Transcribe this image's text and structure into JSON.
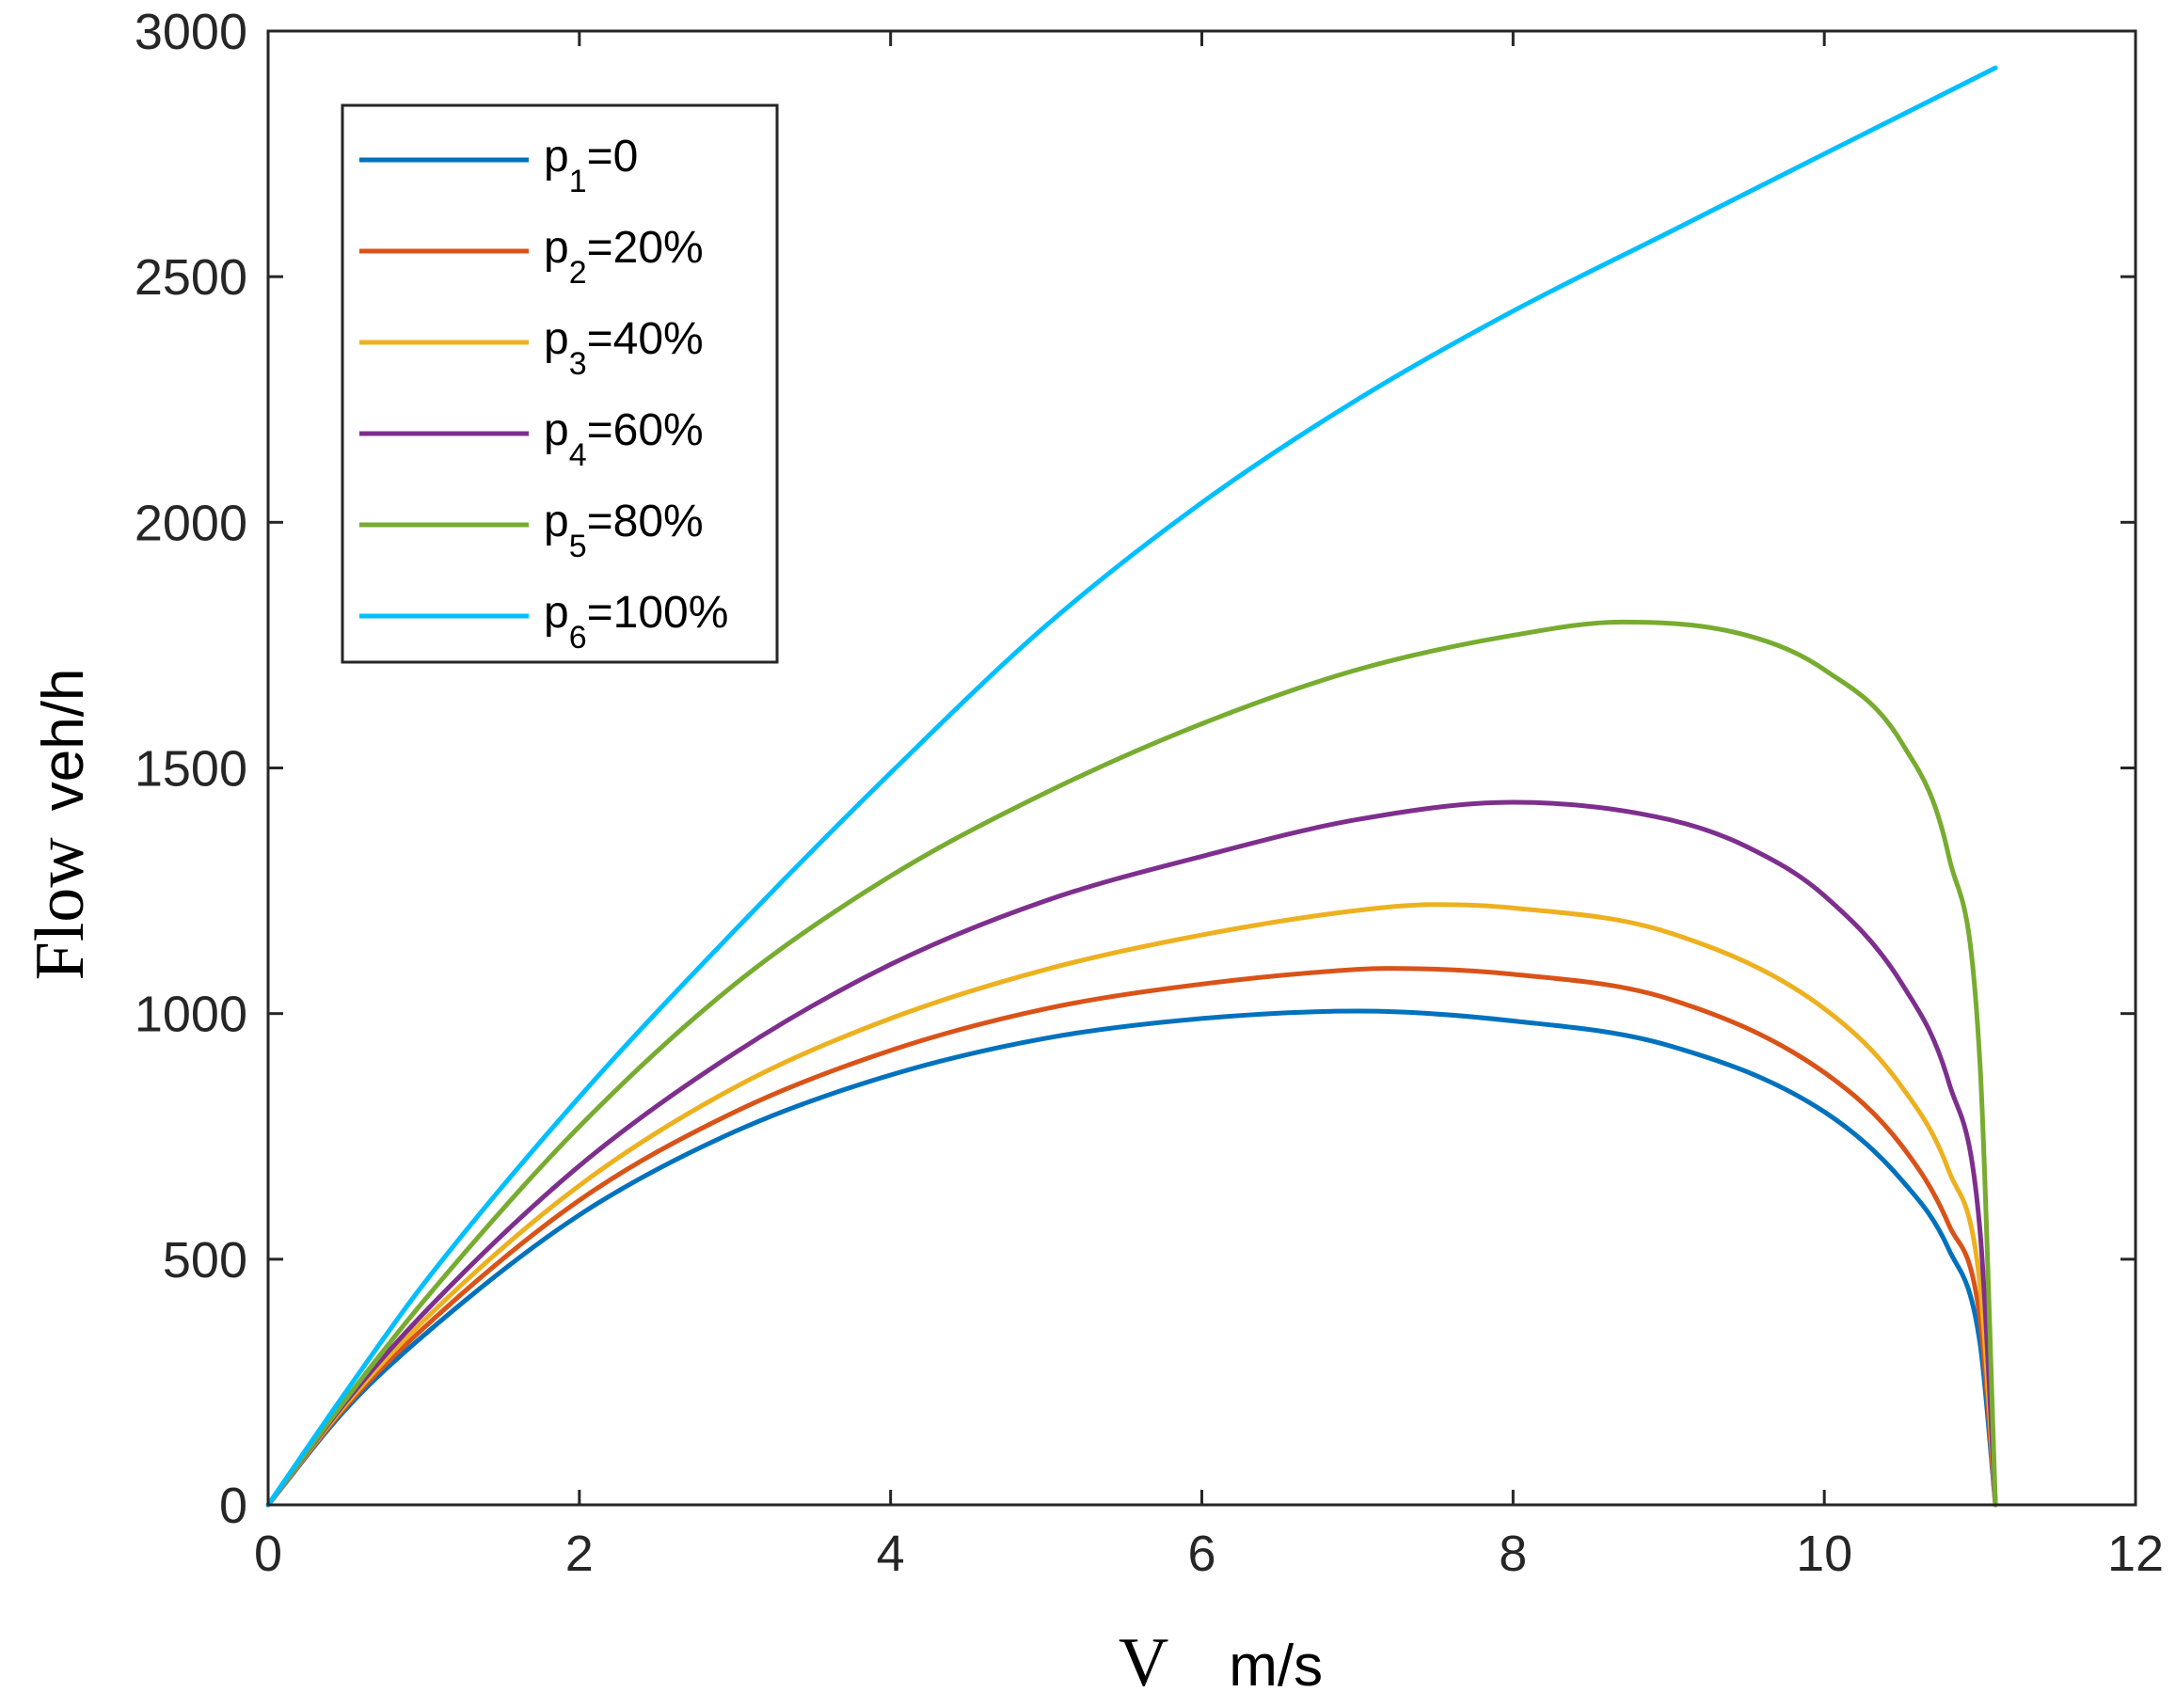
{
  "chart_data": {
    "type": "line",
    "title": "",
    "xlabel": {
      "var": "V",
      "unit": "m/s"
    },
    "ylabel": {
      "var": "Flow",
      "unit": "veh/h"
    },
    "xlim": [
      0,
      12
    ],
    "ylim": [
      0,
      3000
    ],
    "xticks": [
      0,
      2,
      4,
      6,
      8,
      10,
      12
    ],
    "yticks": [
      0,
      500,
      1000,
      1500,
      2000,
      2500,
      3000
    ],
    "grid": false,
    "legend_position": "top-left",
    "series": [
      {
        "name": "p1=0",
        "label_base": "p",
        "label_sub": "1",
        "label_rest": "=0",
        "color": "#0072BD",
        "x": [
          0,
          0.5,
          1,
          2,
          3,
          4,
          5,
          6,
          7,
          8,
          9,
          10,
          10.5,
          10.8,
          11,
          11.1
        ],
        "y": [
          0,
          195,
          345,
          590,
          760,
          875,
          950,
          990,
          1005,
          985,
          935,
          800,
          660,
          520,
          330,
          0
        ]
      },
      {
        "name": "p2=20%",
        "label_base": "p",
        "label_sub": "2",
        "label_rest": "=20%",
        "color": "#D95319",
        "x": [
          0,
          0.5,
          1,
          2,
          3,
          4,
          5,
          6,
          7,
          7.2,
          8,
          9,
          10,
          10.5,
          10.8,
          11,
          11.1
        ],
        "y": [
          0,
          200,
          360,
          620,
          800,
          925,
          1010,
          1060,
          1090,
          1092,
          1080,
          1030,
          880,
          730,
          570,
          380,
          0
        ]
      },
      {
        "name": "p3=40%",
        "label_base": "p",
        "label_sub": "3",
        "label_rest": "=40%",
        "color": "#EDB120",
        "x": [
          0,
          0.5,
          1,
          2,
          3,
          4,
          5,
          6,
          7,
          7.5,
          8,
          9,
          10,
          10.5,
          10.8,
          11,
          11.1
        ],
        "y": [
          0,
          205,
          375,
          650,
          850,
          990,
          1090,
          1160,
          1210,
          1222,
          1215,
          1165,
          1010,
          850,
          680,
          450,
          0
        ]
      },
      {
        "name": "p4=60%",
        "label_base": "p",
        "label_sub": "4",
        "label_rest": "=60%",
        "color": "#7E2F8E",
        "x": [
          0,
          0.5,
          1,
          2,
          3,
          4,
          5,
          6,
          7,
          8,
          9,
          9.5,
          10,
          10.5,
          10.8,
          11,
          11.1
        ],
        "y": [
          0,
          210,
          390,
          690,
          920,
          1100,
          1230,
          1320,
          1395,
          1430,
          1395,
          1340,
          1240,
          1060,
          860,
          560,
          0
        ]
      },
      {
        "name": "p5=80%",
        "label_base": "p",
        "label_sub": "5",
        "label_rest": "=80%",
        "color": "#77AC30",
        "x": [
          0,
          0.5,
          1,
          2,
          3,
          4,
          5,
          6,
          7,
          8,
          8.7,
          9.5,
          10,
          10.5,
          10.8,
          11,
          11.1
        ],
        "y": [
          0,
          215,
          415,
          770,
          1060,
          1280,
          1450,
          1590,
          1700,
          1770,
          1797,
          1770,
          1700,
          1550,
          1320,
          900,
          0
        ]
      },
      {
        "name": "p6=100%",
        "label_base": "p",
        "label_sub": "6",
        "label_rest": "=100%",
        "color": "#00BFFF",
        "x": [
          0,
          0.5,
          1,
          2,
          3,
          4,
          5,
          6,
          7,
          8,
          9,
          10,
          11.1
        ],
        "y": [
          0,
          230,
          450,
          830,
          1170,
          1490,
          1790,
          2040,
          2250,
          2430,
          2590,
          2750,
          2925
        ]
      }
    ]
  }
}
